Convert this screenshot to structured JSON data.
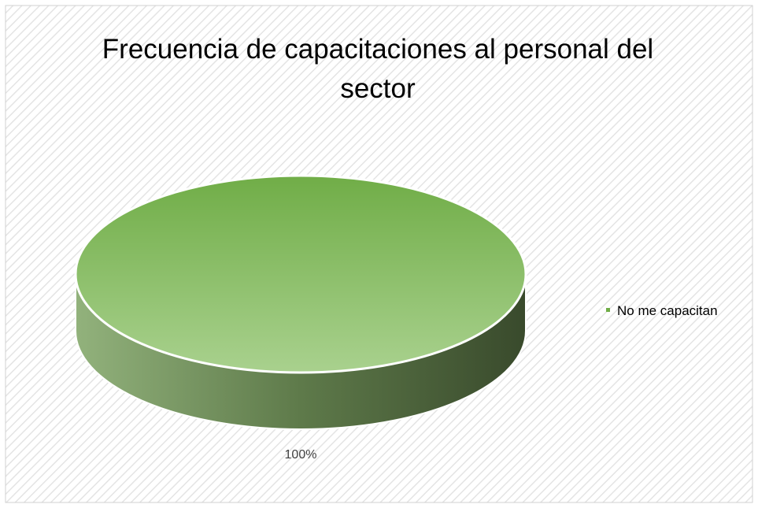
{
  "chart_data": {
    "type": "pie",
    "title": "Frecuencia de capacitaciones al personal del sector",
    "categories": [
      "No me capacitan"
    ],
    "values": [
      100
    ],
    "value_labels": [
      "100%"
    ],
    "colors": [
      "#70ad47"
    ],
    "legend": "right"
  }
}
